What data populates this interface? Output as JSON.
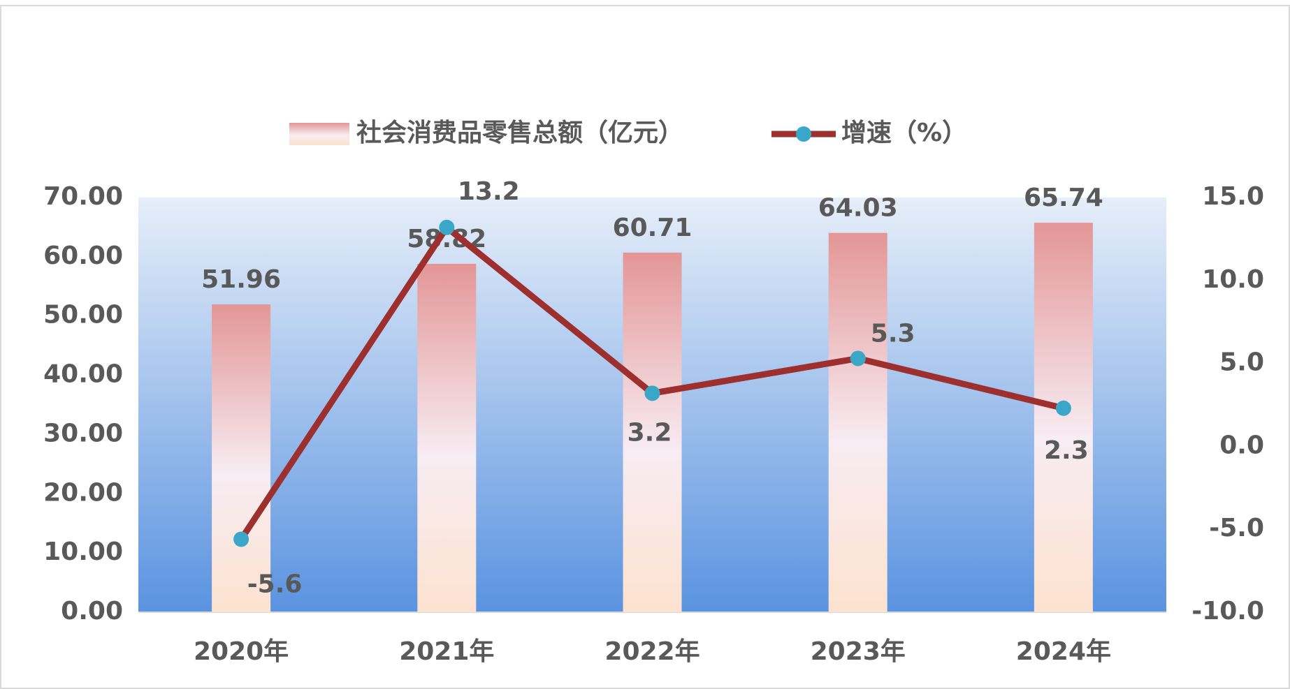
{
  "chart_data": {
    "type": "bar",
    "categories": [
      "2020年",
      "2021年",
      "2022年",
      "2023年",
      "2024年"
    ],
    "series": [
      {
        "name": "社会消费品零售总额（亿元）",
        "type": "bar",
        "color": "#e8a0a0",
        "values": [
          51.96,
          58.82,
          60.71,
          64.03,
          65.74
        ]
      },
      {
        "name": "增速（%）",
        "type": "line",
        "axis": "y2",
        "color": "#9e2f2f",
        "marker_color": "#3aa6c8",
        "values": [
          -5.6,
          13.2,
          3.2,
          5.3,
          2.3
        ]
      }
    ],
    "ylim": [
      0,
      70
    ],
    "yticks": [
      {
        "value": 0,
        "label": "0.00"
      },
      {
        "value": 10,
        "label": "10.00"
      },
      {
        "value": 20,
        "label": "20.00"
      },
      {
        "value": 30,
        "label": "30.00"
      },
      {
        "value": 40,
        "label": "40.00"
      },
      {
        "value": 50,
        "label": "50.00"
      },
      {
        "value": 60,
        "label": "60.00"
      },
      {
        "value": 70,
        "label": "70.00"
      }
    ],
    "y2lim": [
      -10,
      15
    ],
    "y2ticks": [
      {
        "value": -10,
        "label": "-10.0"
      },
      {
        "value": -5,
        "label": "-5.0"
      },
      {
        "value": 0,
        "label": "0.0"
      },
      {
        "value": 5,
        "label": "5.0"
      },
      {
        "value": 10,
        "label": "10.0"
      },
      {
        "value": 15,
        "label": "15.0"
      }
    ],
    "legend": "top"
  }
}
